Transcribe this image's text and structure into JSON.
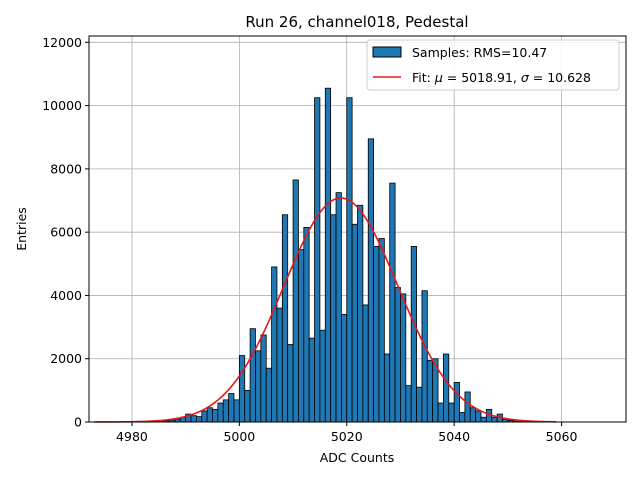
{
  "chart_data": {
    "type": "bar",
    "title": "Run 26, channel018, Pedestal",
    "xlabel": "ADC Counts",
    "ylabel": "Entries",
    "xlim": [
      4972,
      5072
    ],
    "ylim": [
      0,
      12200
    ],
    "xticks": [
      4980,
      5000,
      5020,
      5040,
      5060
    ],
    "yticks": [
      0,
      2000,
      4000,
      6000,
      8000,
      10000,
      12000
    ],
    "grid": true,
    "legend_position": "top-right",
    "bin_width": 1,
    "histogram": {
      "name": "Samples: RMS=10.47",
      "color": "#1f77b4",
      "edge_color": "#000000",
      "bin_starts": [
        4985,
        4986,
        4987,
        4988,
        4989,
        4990,
        4991,
        4992,
        4993,
        4994,
        4995,
        4996,
        4997,
        4998,
        4999,
        5000,
        5001,
        5002,
        5003,
        5004,
        5005,
        5006,
        5007,
        5008,
        5009,
        5010,
        5011,
        5012,
        5013,
        5014,
        5015,
        5016,
        5017,
        5018,
        5019,
        5020,
        5021,
        5022,
        5023,
        5024,
        5025,
        5026,
        5027,
        5028,
        5029,
        5030,
        5031,
        5032,
        5033,
        5034,
        5035,
        5036,
        5037,
        5038,
        5039,
        5040,
        5041,
        5042,
        5043,
        5044,
        5045,
        5046,
        5047,
        5048,
        5049,
        5050,
        5051,
        5052
      ],
      "counts": [
        20,
        40,
        60,
        90,
        150,
        250,
        200,
        170,
        350,
        450,
        400,
        600,
        700,
        900,
        700,
        2100,
        1000,
        2950,
        2250,
        2750,
        1700,
        4900,
        3600,
        6550,
        2450,
        7650,
        5450,
        6150,
        2650,
        10250,
        2900,
        10550,
        6550,
        7250,
        3400,
        10250,
        6250,
        6850,
        3700,
        8950,
        5550,
        5800,
        2150,
        7550,
        4250,
        4050,
        1150,
        5550,
        1100,
        4150,
        1950,
        2000,
        600,
        2150,
        600,
        1250,
        300,
        950,
        450,
        350,
        150,
        400,
        150,
        250,
        80,
        50,
        30,
        15
      ]
    },
    "fit": {
      "name": "Fit: μ = 5018.91, σ = 10.628",
      "color": "#e31a1c",
      "mu": 5018.91,
      "sigma": 10.628,
      "amplitude": 7080,
      "x_range": [
        4973,
        5059
      ]
    }
  },
  "legend": {
    "samples_label": "Samples: RMS=10.47",
    "fit_prefix": "Fit: ",
    "fit_mu_symbol": "μ",
    "fit_mu_value": " = 5018.91, ",
    "fit_sigma_symbol": "σ",
    "fit_sigma_value": " = 10.628"
  }
}
